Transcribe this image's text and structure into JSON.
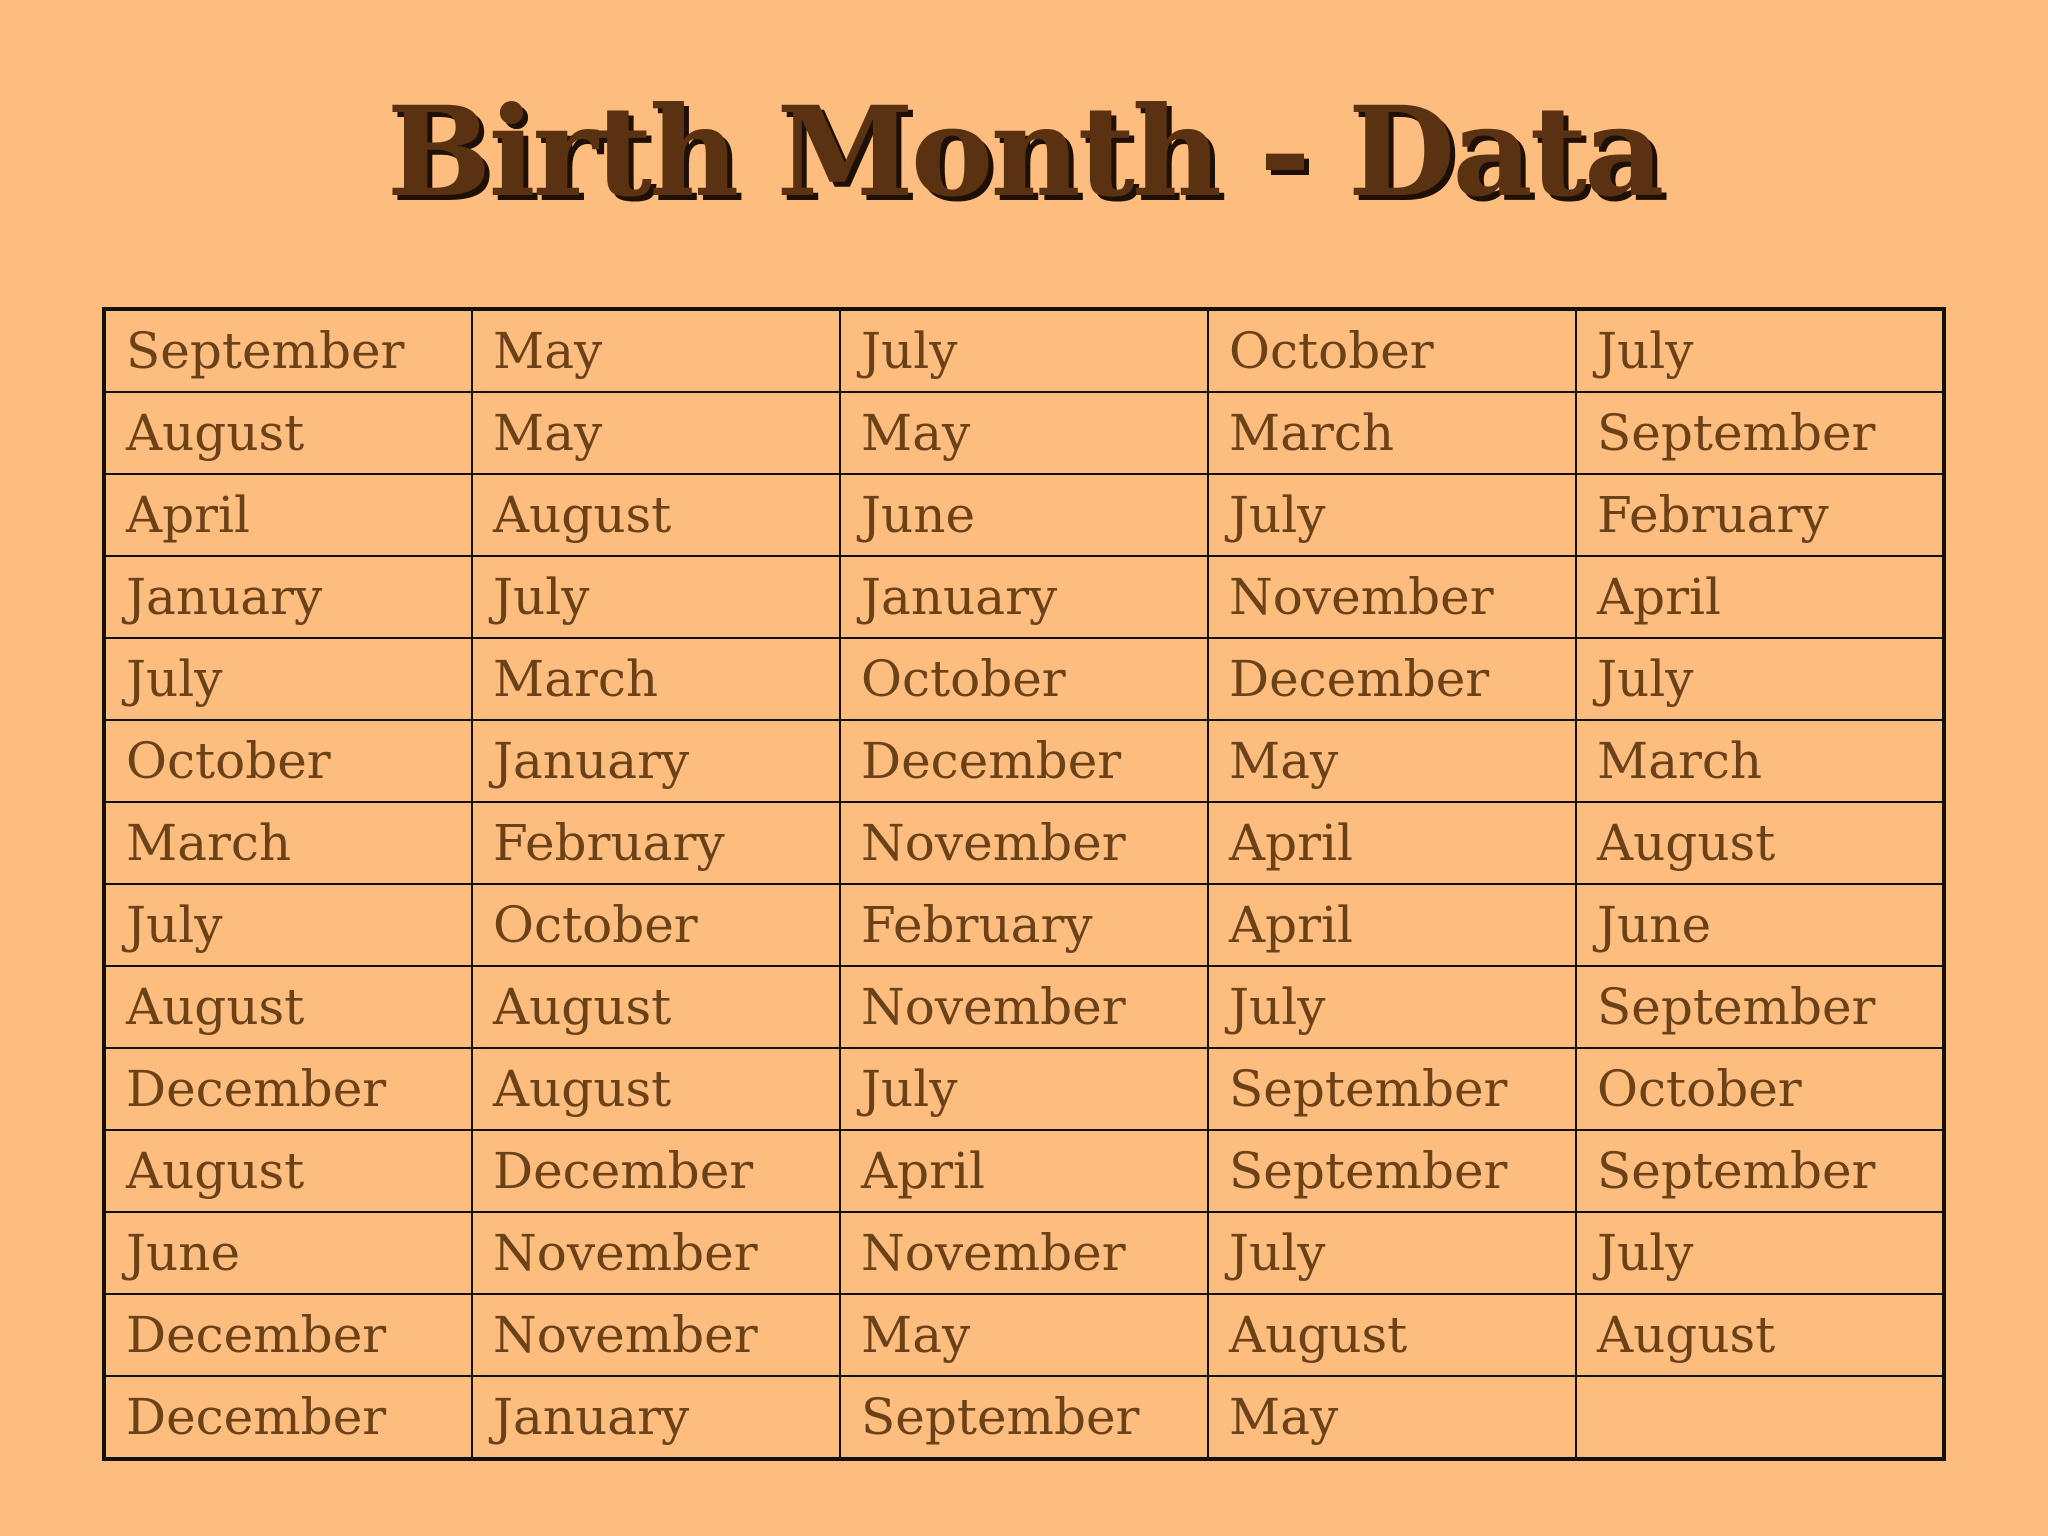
{
  "header": {
    "title": "Birth Month - Data"
  },
  "table": {
    "rows": [
      [
        "September",
        "May",
        "July",
        "October",
        "July"
      ],
      [
        "August",
        "May",
        "May",
        "March",
        "September"
      ],
      [
        "April",
        "August",
        "June",
        "July",
        "February"
      ],
      [
        "January",
        "July",
        "January",
        "November",
        "April"
      ],
      [
        "July",
        "March",
        "October",
        "December",
        "July"
      ],
      [
        "October",
        "January",
        "December",
        "May",
        "March"
      ],
      [
        "March",
        "February",
        "November",
        "April",
        "August"
      ],
      [
        "July",
        "October",
        "February",
        "April",
        "June"
      ],
      [
        "August",
        "August",
        "November",
        "July",
        "September"
      ],
      [
        "December",
        "August",
        "July",
        "September",
        "October"
      ],
      [
        "August",
        "December",
        "April",
        "September",
        "September"
      ],
      [
        "June",
        "November",
        "November",
        "July",
        "July"
      ],
      [
        "December",
        "November",
        "May",
        "August",
        "August"
      ],
      [
        "December",
        "January",
        "September",
        "May"
      ]
    ]
  }
}
